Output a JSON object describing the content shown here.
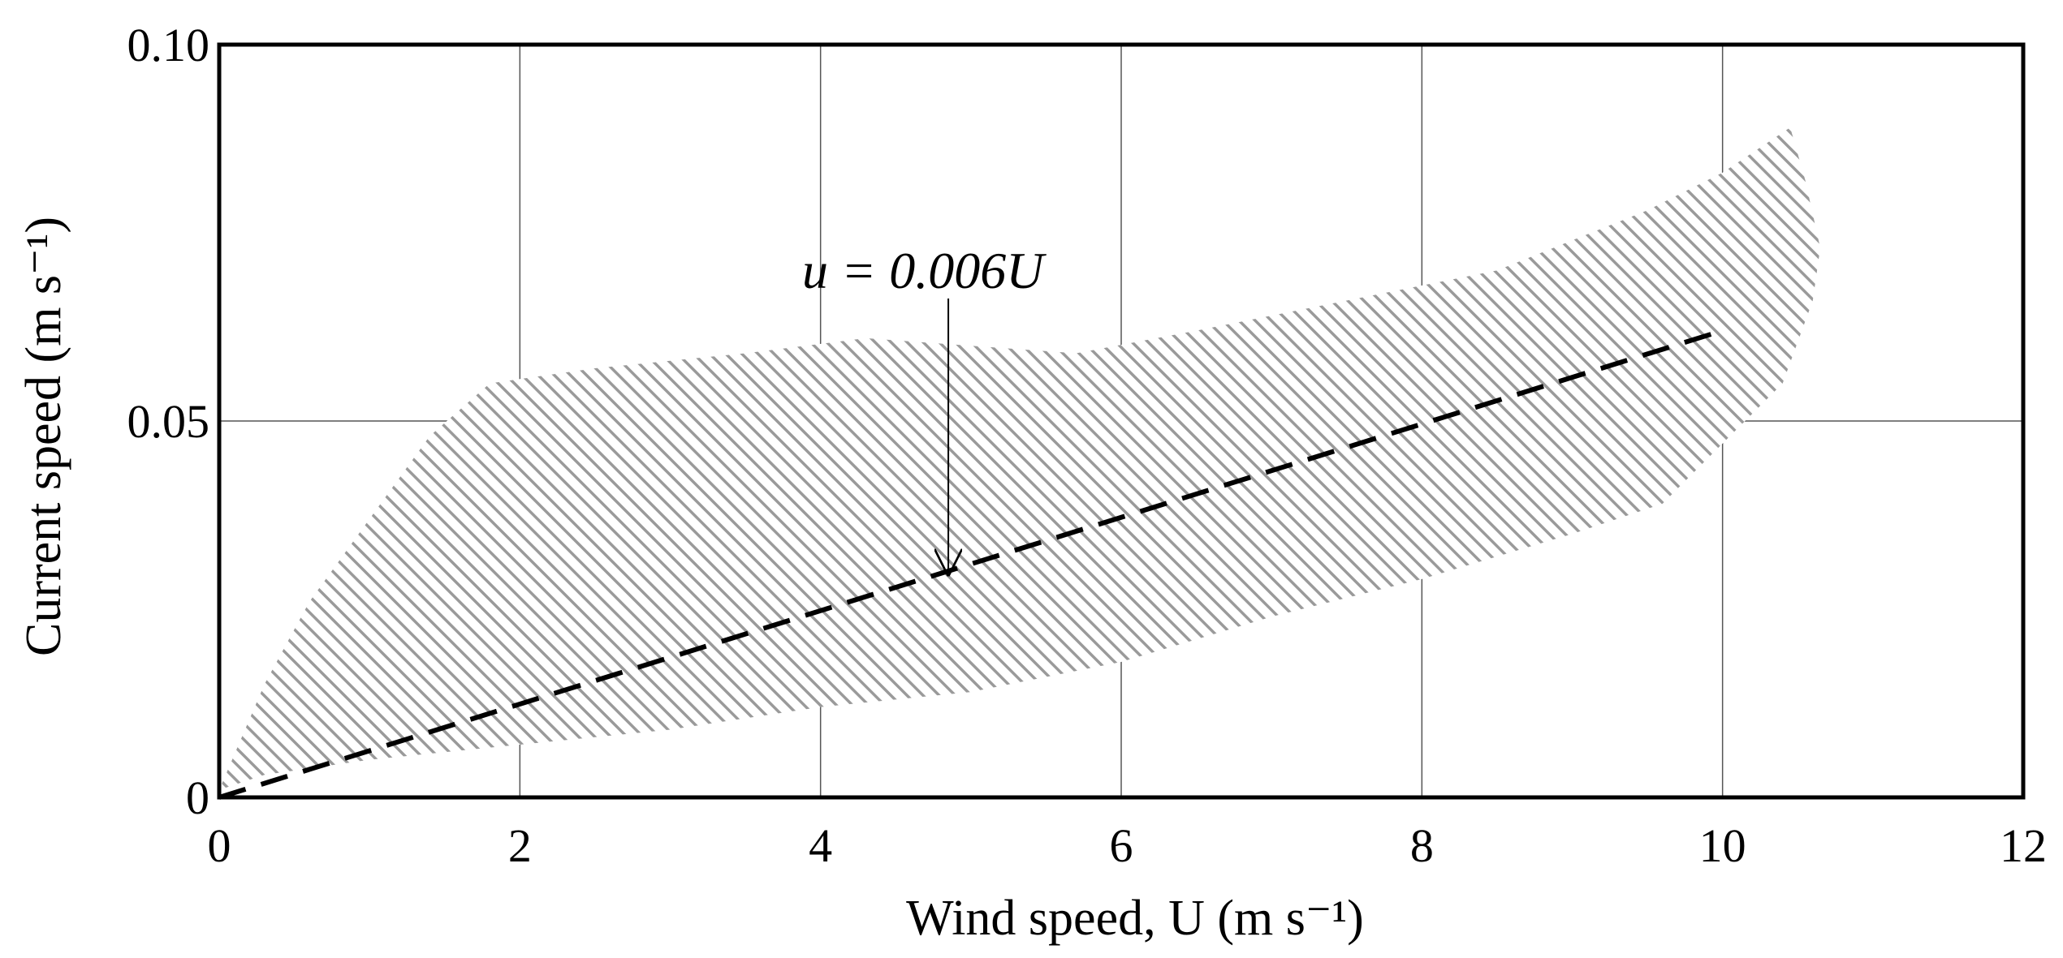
{
  "chart_data": {
    "type": "line",
    "xlabel": "Wind speed, U (m s⁻¹)",
    "ylabel": "Current speed (m s⁻¹)",
    "xlim": [
      0,
      12
    ],
    "ylim": [
      0,
      0.1
    ],
    "x_ticks": [
      0,
      2,
      4,
      6,
      8,
      10,
      12
    ],
    "x_tick_labels": [
      "0",
      "2",
      "4",
      "6",
      "8",
      "10",
      "12"
    ],
    "y_ticks": [
      0,
      0.05,
      0.1
    ],
    "y_tick_labels": [
      "0",
      "0.05",
      "0.10"
    ],
    "grid": true,
    "series": [
      {
        "style": "dashed",
        "color": "#000000",
        "x": [
          0,
          10
        ],
        "y": [
          0,
          0.062
        ]
      }
    ],
    "band": {
      "fill": "hatched",
      "color": "#9a9a9a",
      "upper": [
        [
          0,
          0.001
        ],
        [
          0.3,
          0.015
        ],
        [
          0.6,
          0.026
        ],
        [
          1.0,
          0.037
        ],
        [
          1.4,
          0.048
        ],
        [
          1.8,
          0.055
        ],
        [
          2.5,
          0.057
        ],
        [
          3.5,
          0.059
        ],
        [
          4.3,
          0.061
        ],
        [
          5.0,
          0.06
        ],
        [
          5.7,
          0.059
        ],
        [
          6.5,
          0.062
        ],
        [
          7.5,
          0.066
        ],
        [
          8.5,
          0.07
        ],
        [
          9.5,
          0.078
        ],
        [
          10.0,
          0.083
        ],
        [
          10.45,
          0.089
        ],
        [
          10.55,
          0.082
        ],
        [
          10.65,
          0.073
        ]
      ],
      "lower": [
        [
          10.65,
          0.073
        ],
        [
          10.6,
          0.066
        ],
        [
          10.4,
          0.055
        ],
        [
          10.0,
          0.047
        ],
        [
          9.6,
          0.039
        ],
        [
          9.0,
          0.035
        ],
        [
          8.0,
          0.029
        ],
        [
          7.0,
          0.024
        ],
        [
          6.0,
          0.018
        ],
        [
          5.0,
          0.014
        ],
        [
          4.0,
          0.012
        ],
        [
          3.0,
          0.009
        ],
        [
          2.0,
          0.007
        ],
        [
          1.0,
          0.005
        ],
        [
          0.3,
          0.003
        ],
        [
          0,
          0.001
        ]
      ]
    },
    "annotations": [
      {
        "text": "u = 0.006U",
        "arrow_to": [
          4.85,
          0.0295
        ]
      }
    ]
  }
}
